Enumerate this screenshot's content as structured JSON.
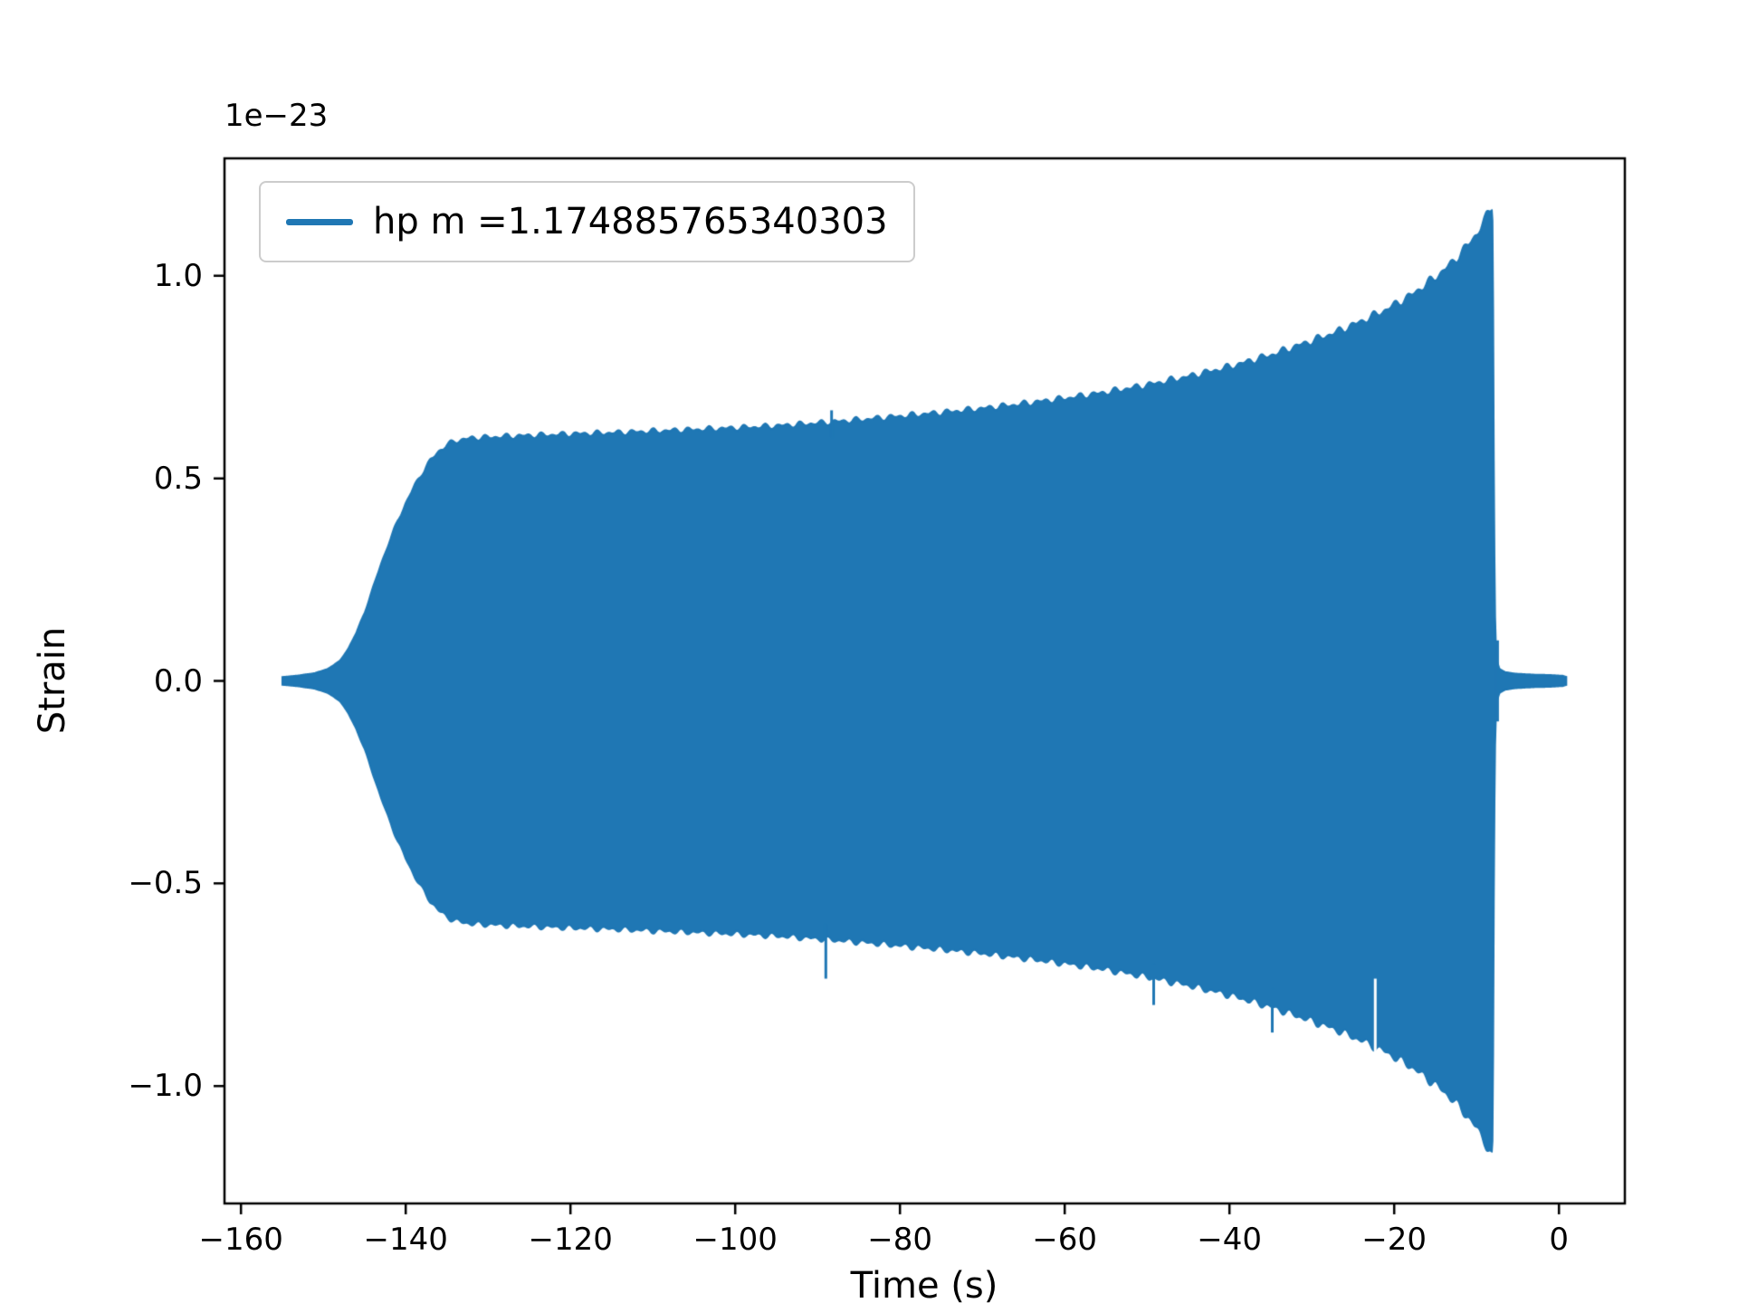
{
  "figure": {
    "background": "#ffffff",
    "accent_color": "#1f77b4"
  },
  "axes": {
    "xlabel": "Time (s)",
    "ylabel": "Strain",
    "offset_text": "1e−23"
  },
  "legend": {
    "label": "hp m =1.174885765340303"
  },
  "chart_data": {
    "type": "line",
    "title": "",
    "xlabel": "Time (s)",
    "ylabel": "Strain",
    "y_scale_factor": "1e-23",
    "x_range": [
      -162,
      8
    ],
    "y_range_1e23": [
      -1.29,
      1.29
    ],
    "xticks": [
      -160,
      -140,
      -120,
      -100,
      -80,
      -60,
      -40,
      -20,
      0
    ],
    "xtick_labels": [
      "−160",
      "−140",
      "−120",
      "−100",
      "−80",
      "−60",
      "−40",
      "−20",
      "0"
    ],
    "yticks": [
      -1.0,
      -0.5,
      0.0,
      0.5,
      1.0
    ],
    "ytick_labels": [
      "−1.0",
      "−0.5",
      "0.0",
      "0.5",
      "1.0"
    ],
    "grid": false,
    "legend_entries": [
      "hp m =1.174885765340303"
    ],
    "legend_position": "upper left",
    "series": [
      {
        "name": "hp m =1.174885765340303",
        "color": "#1f77b4",
        "kind": "gravitational-wave chirp (h-plus polarization); oscillation too dense to resolve, rendered as fill between +envelope and −envelope",
        "envelope_points_t_seconds_amp_1e23": [
          [
            -155.0,
            0.01
          ],
          [
            -153.0,
            0.014
          ],
          [
            -151.0,
            0.02
          ],
          [
            -149.5,
            0.03
          ],
          [
            -148.0,
            0.05
          ],
          [
            -147.0,
            0.08
          ],
          [
            -146.0,
            0.12
          ],
          [
            -145.0,
            0.17
          ],
          [
            -144.0,
            0.23
          ],
          [
            -143.0,
            0.29
          ],
          [
            -142.0,
            0.345
          ],
          [
            -141.0,
            0.395
          ],
          [
            -140.0,
            0.44
          ],
          [
            -139.0,
            0.48
          ],
          [
            -138.0,
            0.515
          ],
          [
            -137.0,
            0.545
          ],
          [
            -136.0,
            0.568
          ],
          [
            -135.0,
            0.583
          ],
          [
            -134.0,
            0.593
          ],
          [
            -132.0,
            0.6
          ],
          [
            -128.0,
            0.604
          ],
          [
            -124.0,
            0.607
          ],
          [
            -120.0,
            0.61
          ],
          [
            -115.0,
            0.613
          ],
          [
            -110.0,
            0.617
          ],
          [
            -105.0,
            0.621
          ],
          [
            -100.0,
            0.625
          ],
          [
            -95.0,
            0.63
          ],
          [
            -90.0,
            0.637
          ],
          [
            -85.0,
            0.645
          ],
          [
            -80.0,
            0.654
          ],
          [
            -75.0,
            0.663
          ],
          [
            -70.0,
            0.673
          ],
          [
            -65.0,
            0.685
          ],
          [
            -60.0,
            0.698
          ],
          [
            -55.0,
            0.713
          ],
          [
            -50.0,
            0.731
          ],
          [
            -45.0,
            0.752
          ],
          [
            -40.0,
            0.776
          ],
          [
            -35.0,
            0.805
          ],
          [
            -30.0,
            0.84
          ],
          [
            -27.0,
            0.862
          ],
          [
            -24.0,
            0.888
          ],
          [
            -21.0,
            0.917
          ],
          [
            -18.0,
            0.952
          ],
          [
            -15.0,
            0.997
          ],
          [
            -13.0,
            1.032
          ],
          [
            -11.0,
            1.078
          ],
          [
            -10.0,
            1.105
          ],
          [
            -9.0,
            1.138
          ],
          [
            -8.5,
            1.16
          ],
          [
            -8.2,
            1.173
          ],
          [
            -8.05,
            1.175
          ],
          [
            -7.95,
            0.9
          ],
          [
            -7.85,
            0.4
          ],
          [
            -7.7,
            0.12
          ],
          [
            -7.5,
            0.05
          ],
          [
            -7.2,
            0.03
          ],
          [
            -6.5,
            0.022
          ],
          [
            -5.0,
            0.018
          ],
          [
            -3.0,
            0.016
          ],
          [
            -1.0,
            0.015
          ],
          [
            0.5,
            0.013
          ],
          [
            1.0,
            0.01
          ]
        ],
        "notable_features": {
          "peak_amplitude_1e23": 1.175,
          "peak_time_s": -8.1,
          "spikes": [
            {
              "t": -89.0,
              "from": -0.6,
              "to": -0.735
            },
            {
              "t": -88.3,
              "from": 0.6,
              "to": 0.668
            },
            {
              "t": -49.2,
              "from": -0.7,
              "to": -0.8
            },
            {
              "t": -34.8,
              "from": -0.76,
              "to": -0.868
            },
            {
              "t": -7.45,
              "from": -0.1,
              "to": 0.1
            }
          ],
          "white_notches": [
            {
              "t": -22.3,
              "from": -0.735,
              "to": -0.925
            }
          ]
        }
      }
    ]
  }
}
